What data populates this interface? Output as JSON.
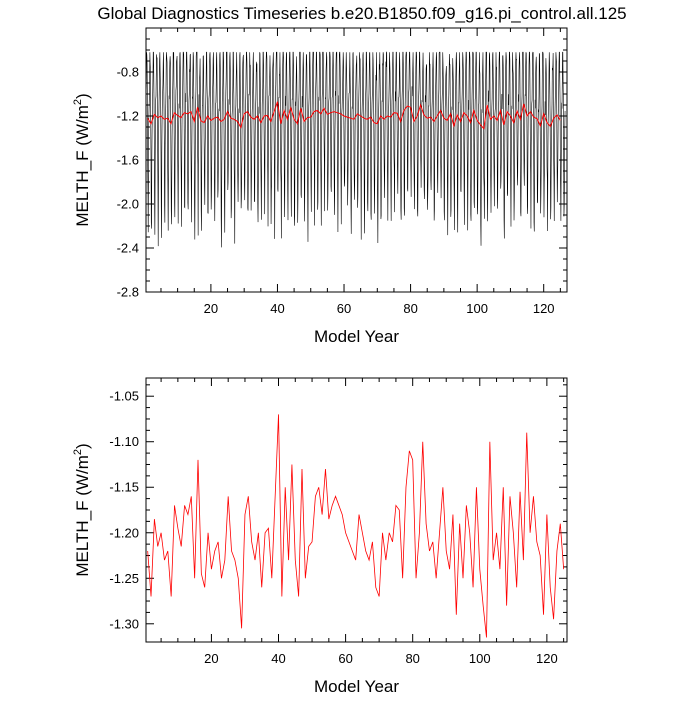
{
  "title": "Global Diagnostics Timeseries b.e20.B1850.f09_g16.pi_control.all.125",
  "colors": {
    "monthly": "#000000",
    "annual": "#ff0000",
    "axis": "#000000"
  },
  "chart_data": [
    {
      "type": "line",
      "name": "monthly-and-annual",
      "xlabel": "Model Year",
      "ylabel": "MELTH_F (W/m²)",
      "ylabel_base": "MELTH_F (W/m",
      "ylabel_sup": "2",
      "ylabel_end": ")",
      "xlim": [
        0.5,
        127
      ],
      "ylim": [
        -2.8,
        -0.4
      ],
      "xticks": [
        20,
        40,
        60,
        80,
        100,
        120
      ],
      "xtick_labels": [
        "20",
        "40",
        "60",
        "80",
        "100",
        "120"
      ],
      "yticks": [
        -2.8,
        -2.4,
        -2.0,
        -1.6,
        -1.2,
        -0.8
      ],
      "ytick_labels": [
        "-2.8",
        "-2.4",
        "-2.0",
        "-1.6",
        "-1.2",
        "-0.8"
      ],
      "monthly_cycle": [
        -1.2,
        -1.0,
        -0.82,
        -0.78,
        -0.95,
        -1.25,
        -1.65,
        -2.05,
        -2.2,
        -1.75,
        -1.4,
        -1.25
      ],
      "monthly_range": {
        "min": -2.55,
        "max": -0.62
      }
    },
    {
      "type": "line",
      "name": "annual",
      "xlabel": "Model Year",
      "ylabel": "MELTH_F (W/m²)",
      "ylabel_base": "MELTH_F (W/m",
      "ylabel_sup": "2",
      "ylabel_end": ")",
      "xlim": [
        0.5,
        126
      ],
      "ylim": [
        -1.32,
        -1.03
      ],
      "xticks": [
        20,
        40,
        60,
        80,
        100,
        120
      ],
      "xtick_labels": [
        "20",
        "40",
        "60",
        "80",
        "100",
        "120"
      ],
      "yticks": [
        -1.3,
        -1.25,
        -1.2,
        -1.15,
        -1.1,
        -1.05
      ],
      "ytick_labels": [
        "-1.30",
        "-1.25",
        "-1.20",
        "-1.15",
        "-1.10",
        "-1.05"
      ],
      "x": [
        1,
        2,
        3,
        4,
        5,
        6,
        7,
        8,
        9,
        10,
        11,
        12,
        13,
        14,
        15,
        16,
        17,
        18,
        19,
        20,
        21,
        22,
        23,
        24,
        25,
        26,
        27,
        28,
        29,
        30,
        31,
        32,
        33,
        34,
        35,
        36,
        37,
        38,
        39,
        40,
        41,
        42,
        43,
        44,
        45,
        46,
        47,
        48,
        49,
        50,
        51,
        52,
        53,
        54,
        55,
        56,
        57,
        58,
        59,
        60,
        61,
        62,
        63,
        64,
        65,
        66,
        67,
        68,
        69,
        70,
        71,
        72,
        73,
        74,
        75,
        76,
        77,
        78,
        79,
        80,
        81,
        82,
        83,
        84,
        85,
        86,
        87,
        88,
        89,
        90,
        91,
        92,
        93,
        94,
        95,
        96,
        97,
        98,
        99,
        100,
        101,
        102,
        103,
        104,
        105,
        106,
        107,
        108,
        109,
        110,
        111,
        112,
        113,
        114,
        115,
        116,
        117,
        118,
        119,
        120,
        121,
        122,
        123,
        124,
        125
      ],
      "y": [
        -1.22,
        -1.27,
        -1.185,
        -1.215,
        -1.2,
        -1.23,
        -1.22,
        -1.27,
        -1.17,
        -1.195,
        -1.215,
        -1.17,
        -1.18,
        -1.16,
        -1.25,
        -1.12,
        -1.245,
        -1.26,
        -1.2,
        -1.24,
        -1.22,
        -1.21,
        -1.25,
        -1.23,
        -1.16,
        -1.22,
        -1.23,
        -1.25,
        -1.305,
        -1.18,
        -1.16,
        -1.21,
        -1.23,
        -1.2,
        -1.26,
        -1.2,
        -1.195,
        -1.25,
        -1.16,
        -1.07,
        -1.27,
        -1.15,
        -1.23,
        -1.125,
        -1.23,
        -1.27,
        -1.13,
        -1.25,
        -1.215,
        -1.21,
        -1.16,
        -1.15,
        -1.18,
        -1.13,
        -1.185,
        -1.17,
        -1.16,
        -1.17,
        -1.18,
        -1.2,
        -1.21,
        -1.22,
        -1.23,
        -1.18,
        -1.2,
        -1.22,
        -1.23,
        -1.21,
        -1.26,
        -1.27,
        -1.2,
        -1.23,
        -1.2,
        -1.21,
        -1.17,
        -1.175,
        -1.25,
        -1.15,
        -1.11,
        -1.12,
        -1.25,
        -1.2,
        -1.1,
        -1.19,
        -1.22,
        -1.21,
        -1.25,
        -1.2,
        -1.15,
        -1.22,
        -1.24,
        -1.18,
        -1.29,
        -1.19,
        -1.25,
        -1.17,
        -1.2,
        -1.26,
        -1.15,
        -1.24,
        -1.28,
        -1.315,
        -1.1,
        -1.23,
        -1.2,
        -1.24,
        -1.15,
        -1.28,
        -1.16,
        -1.2,
        -1.26,
        -1.155,
        -1.23,
        -1.09,
        -1.2,
        -1.16,
        -1.21,
        -1.225,
        -1.29,
        -1.18,
        -1.26,
        -1.295,
        -1.22,
        -1.19,
        -1.24
      ]
    }
  ]
}
